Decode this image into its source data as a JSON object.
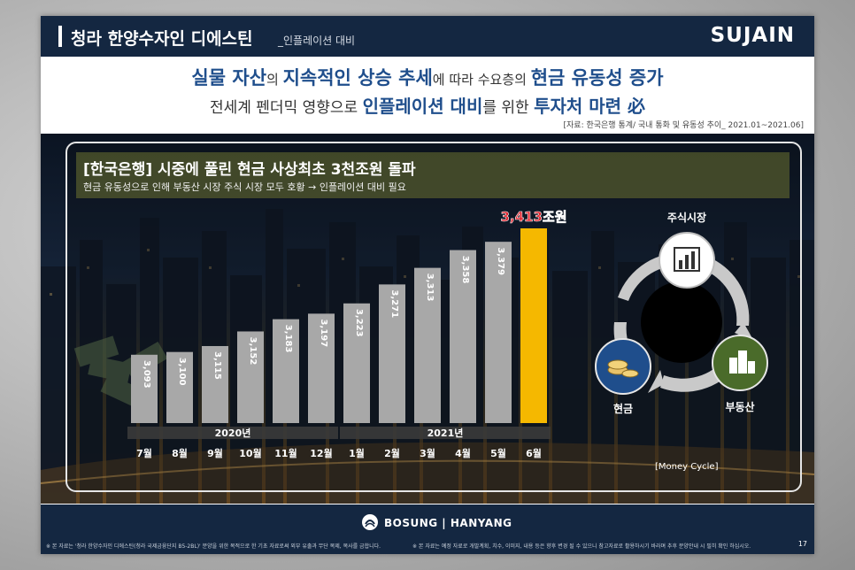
{
  "header": {
    "title": "청라 한양수자인 디에스틴",
    "subtitle": "_인플레이션 대비",
    "brand": "SUJAIN"
  },
  "headline1": {
    "p1": "실물 자산",
    "p2": "의 ",
    "p3": "지속적인 상승 추세",
    "p4": "에 따라 수요층의 ",
    "p5": "현금 유동성 증가"
  },
  "headline2": {
    "p1": "전세계 펜더믹 영향으로 ",
    "p2": "인플레이션 대비",
    "p3": "를 위한 ",
    "p4": "투자처 마련 必"
  },
  "source": "[자료: 한국은행 통계/  국내 통화 및 유동성 추이_ 2021.01~2021.06]",
  "panel": {
    "title": "[한국은행] 시중에 풀린 현금 사상최초 3천조원 돌파",
    "subtitle": "현금 유동성으로 인해 부동산 시장 주식 시장 모두 호황 → 인플레이션 대비 필요"
  },
  "chart_data": {
    "type": "bar",
    "categories": [
      "7월",
      "8월",
      "9월",
      "10월",
      "11월",
      "12월",
      "1월",
      "2월",
      "3월",
      "4월",
      "5월",
      "6월"
    ],
    "values": [
      3093,
      3100,
      3115,
      3152,
      3183,
      3197,
      3223,
      3271,
      3313,
      3358,
      3379,
      3413
    ],
    "labels": [
      "3,093",
      "3,100",
      "3,115",
      "3,152",
      "3,183",
      "3,197",
      "3,223",
      "3,271",
      "3,313",
      "3,358",
      "3,379",
      ""
    ],
    "highlight_label": "3,413조원",
    "year_groups": [
      {
        "label": "2020년",
        "from": 0,
        "to": 5
      },
      {
        "label": "2021년",
        "from": 6,
        "to": 11
      }
    ],
    "colors": {
      "bar": "#a8a8a8",
      "highlight": "#f5b800",
      "highlight_label": "#e0202a"
    }
  },
  "cycle": {
    "stock_label": "주식시장",
    "cash_label": "현금",
    "realestate_label": "부동산",
    "caption": "[Money Cycle]",
    "icons": [
      "bar-chart-icon",
      "coins-icon",
      "buildings-icon"
    ],
    "colors": {
      "stock": "#ffffff",
      "cash": "#1f4e8c",
      "realestate": "#4a6b2a"
    }
  },
  "footer": {
    "brand": "BOSUNG | HANYANG",
    "disclaimer_left": "※ 본 자료는 '청라 한양수자인 디에스틴(청라 국제금융단지 B5-2BL)' 분양을 위한 목적으로 한 기초 자료로써 외부 유출과 무단 복제, 복사를 금합니다.",
    "disclaimer_right": "※ 본 자료는 예정 자료로 개발계획, 치수, 이미지, 내용 등은 향후 변경 될 수 있으니 참고자료로 활용하시기 바라며 추후 분양안내 시 필히 확인 하십시오.",
    "page": "17"
  }
}
